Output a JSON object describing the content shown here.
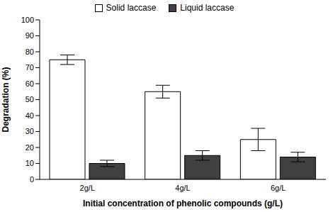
{
  "chart_data": {
    "type": "bar",
    "x_label": "Initial concentration of phenolic compounds (g/L)",
    "y_label": "Degradation (%)",
    "categories": [
      "2g/L",
      "4g/L",
      "6g/L"
    ],
    "series": [
      {
        "name": "Solid laccase",
        "color": "#ffffff",
        "values": [
          75,
          55,
          25
        ],
        "errors": [
          3,
          4,
          7
        ]
      },
      {
        "name": "Liquid laccase",
        "color": "#404040",
        "values": [
          10,
          15,
          14
        ],
        "errors": [
          2,
          3,
          3
        ]
      }
    ],
    "ylim": [
      0,
      100
    ],
    "yticks": [
      0,
      10,
      20,
      30,
      40,
      50,
      60,
      70,
      80,
      90,
      100
    ],
    "grid": false,
    "legend": "top"
  }
}
